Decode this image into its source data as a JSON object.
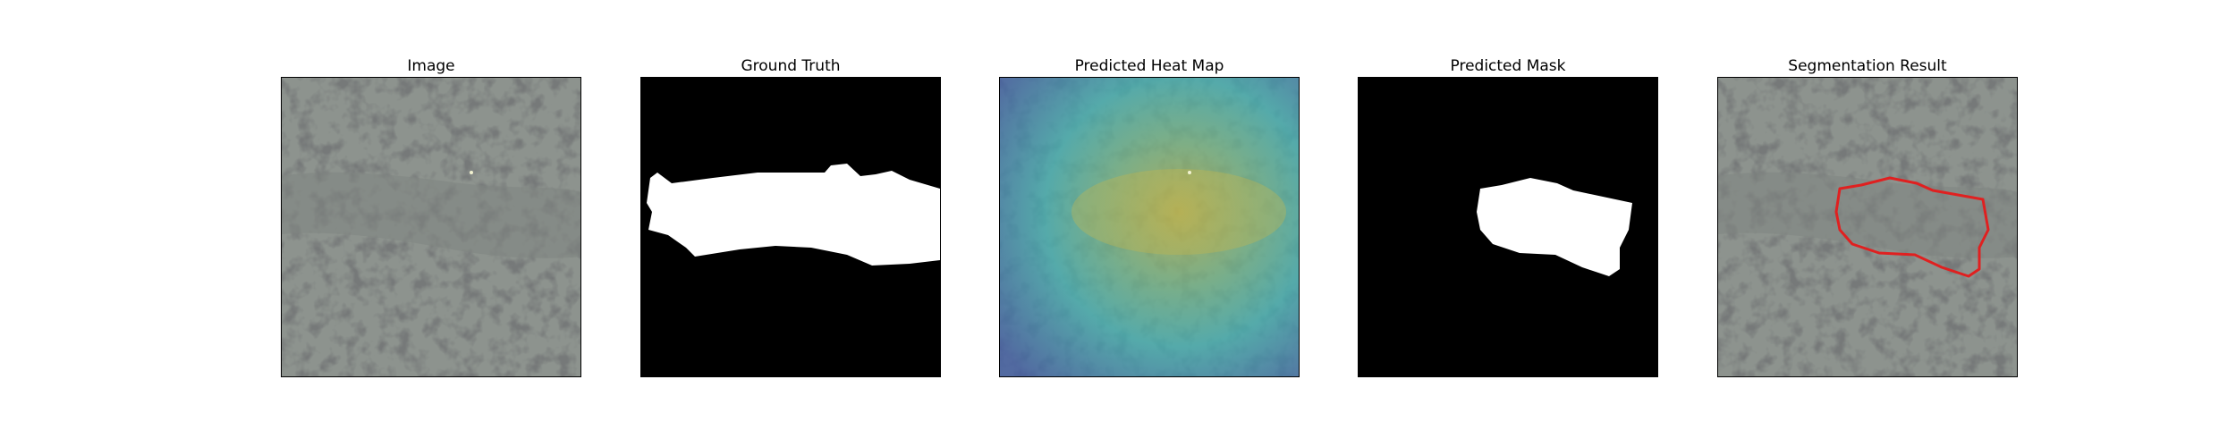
{
  "panels": [
    {
      "title": "Image"
    },
    {
      "title": "Ground Truth"
    },
    {
      "title": "Predicted Heat Map"
    },
    {
      "title": "Predicted Mask"
    },
    {
      "title": "Segmentation Result"
    }
  ],
  "colors": {
    "background": "#ffffff",
    "texture_base": "#8d938e",
    "texture_spots": "#2e302f",
    "mask_foreground": "#ffffff",
    "mask_background": "#000000",
    "heatmap_low": "#3b5aa8",
    "heatmap_mid": "#3fb3b5",
    "heatmap_high": "#b7b84a",
    "contour": "#e02020"
  }
}
